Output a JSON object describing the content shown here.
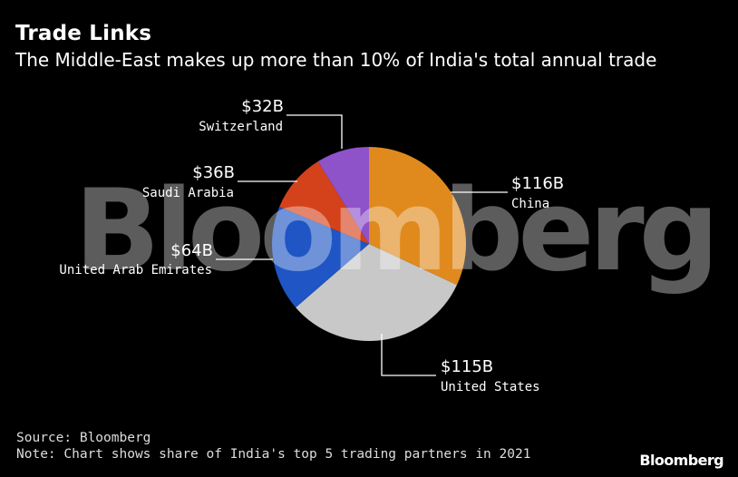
{
  "header": {
    "title": "Trade Links",
    "subtitle": "The Middle-East makes up more than 10% of India's total annual trade"
  },
  "watermark": "Bloomberg",
  "footer": {
    "source": "Source: Bloomberg",
    "note": "Note: Chart shows share of India's top 5 trading partners in 2021",
    "brand": "Bloomberg"
  },
  "colors": {
    "China": "#e08a1e",
    "United States": "#c8c8c8",
    "United Arab Emirates": "#1f55c4",
    "Saudi Arabia": "#d4421b",
    "Switzerland": "#8e52c9"
  },
  "chart_data": {
    "type": "pie",
    "title": "Trade Links",
    "subtitle": "The Middle-East makes up more than 10% of India's total annual trade",
    "unit": "USD billions",
    "start": "12 o'clock, clockwise",
    "slices": [
      {
        "label": "China",
        "value": 116,
        "value_label": "$116B"
      },
      {
        "label": "United States",
        "value": 115,
        "value_label": "$115B"
      },
      {
        "label": "United Arab Emirates",
        "value": 64,
        "value_label": "$64B"
      },
      {
        "label": "Saudi Arabia",
        "value": 36,
        "value_label": "$36B"
      },
      {
        "label": "Switzerland",
        "value": 32,
        "value_label": "$32B"
      }
    ]
  }
}
